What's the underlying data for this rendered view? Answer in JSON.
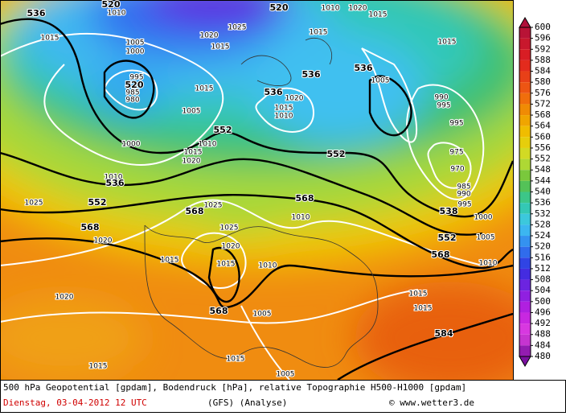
{
  "map": {
    "geopotential_labels": [
      536,
      520,
      520,
      520,
      536,
      536,
      536,
      552,
      552,
      536,
      552,
      568,
      568,
      568,
      538,
      552,
      568,
      568,
      584
    ],
    "pressure_labels": [
      1010,
      1010,
      1020,
      1015,
      1015,
      1005,
      1000,
      1025,
      1020,
      1015,
      1015,
      995,
      985,
      980,
      1015,
      1005,
      1020,
      1015,
      1010,
      1005,
      990,
      995,
      995,
      975,
      970,
      985,
      990,
      995,
      1000,
      1005,
      1010,
      1000,
      1010,
      1015,
      1020,
      1010,
      1025,
      1025,
      1020,
      1025,
      1020,
      1015,
      1015,
      1010,
      1010,
      1015,
      1020,
      1015,
      1015,
      1005,
      1015,
      1015,
      1005
    ]
  },
  "colorbar": {
    "ticks": [
      600,
      596,
      592,
      588,
      584,
      580,
      576,
      572,
      568,
      564,
      560,
      556,
      552,
      548,
      544,
      540,
      536,
      532,
      528,
      524,
      520,
      516,
      512,
      508,
      504,
      500,
      496,
      492,
      488,
      484,
      480
    ]
  },
  "caption": {
    "title": "500 hPa Geopotential [gpdam], Bodendruck [hPa], relative Topographie H500-H1000 [gpdam]",
    "date": "Dienstag, 03-04-2012  12 UTC",
    "model": "(GFS)  (Analyse)",
    "source": "© www.wetter3.de"
  }
}
